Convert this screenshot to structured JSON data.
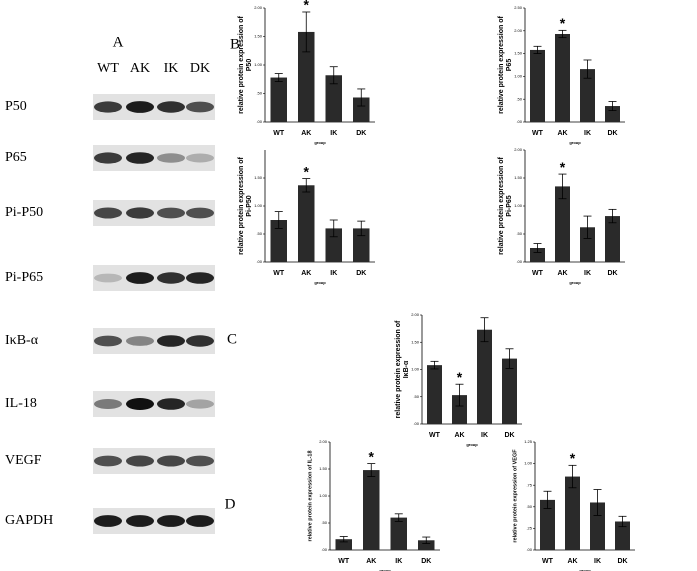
{
  "blot": {
    "panel": "A",
    "lanes": [
      "WT",
      "AK",
      "IK",
      "DK"
    ],
    "rows": [
      "P50",
      "P65",
      "Pi-P50",
      "Pi-P65",
      "IκB-α",
      "IL-18",
      "VEGF",
      "GAPDH"
    ]
  },
  "panels": [
    "B",
    "C",
    "D"
  ],
  "chart_data": [
    {
      "type": "bar",
      "ylabel": [
        "relative protein expression of",
        "P50"
      ],
      "xlabel": "group",
      "categories": [
        "WT",
        "AK",
        "IK",
        "DK"
      ],
      "values": [
        0.78,
        1.58,
        0.82,
        0.43
      ],
      "errors": [
        0.07,
        0.35,
        0.15,
        0.15
      ],
      "color": "#2a2a2a",
      "ylim": [
        0,
        2
      ],
      "yticks": [
        {
          "value": 0,
          "label": ".00"
        },
        {
          "value": 0.5,
          "label": ".50"
        },
        {
          "value": 1,
          "label": "1.00"
        },
        {
          "value": 1.5,
          "label": "1.50"
        },
        {
          "value": 2,
          "label": "2.00"
        }
      ],
      "annotation": "*",
      "annotation_category": "AK"
    },
    {
      "type": "bar",
      "ylabel": [
        "relative protein expression of",
        "P65"
      ],
      "xlabel": "group",
      "categories": [
        "WT",
        "AK",
        "IK",
        "DK"
      ],
      "values": [
        1.58,
        1.93,
        1.16,
        0.35
      ],
      "errors": [
        0.08,
        0.08,
        0.2,
        0.1
      ],
      "color": "#2a2a2a",
      "ylim": [
        0,
        2.5
      ],
      "yticks": [
        {
          "value": 0,
          "label": ".00"
        },
        {
          "value": 0.5,
          "label": ".50"
        },
        {
          "value": 1,
          "label": "1.00"
        },
        {
          "value": 1.5,
          "label": "1.50"
        },
        {
          "value": 2,
          "label": "2.00"
        },
        {
          "value": 2.5,
          "label": "2.50"
        }
      ],
      "annotation": "*",
      "annotation_category": "AK"
    },
    {
      "type": "bar",
      "ylabel": [
        "relative protein expression of",
        "Pi-P50"
      ],
      "xlabel": "group",
      "categories": [
        "WT",
        "AK",
        "IK",
        "DK"
      ],
      "values": [
        0.75,
        1.37,
        0.6,
        0.6
      ],
      "errors": [
        0.15,
        0.12,
        0.15,
        0.13
      ],
      "color": "#2a2a2a",
      "ylim": [
        0,
        2
      ],
      "yticks": [
        {
          "value": 0,
          "label": ".00"
        },
        {
          "value": 0.5,
          "label": ".50"
        },
        {
          "value": 1,
          "label": "1.00"
        },
        {
          "value": 1.5,
          "label": "1.50"
        }
      ],
      "annotation": "*",
      "annotation_category": "AK"
    },
    {
      "type": "bar",
      "ylabel": [
        "relative protein expression of",
        "Pi-P65"
      ],
      "xlabel": "group",
      "categories": [
        "WT",
        "AK",
        "IK",
        "DK"
      ],
      "values": [
        0.25,
        1.35,
        0.62,
        0.82
      ],
      "errors": [
        0.08,
        0.22,
        0.2,
        0.12
      ],
      "color": "#2a2a2a",
      "ylim": [
        0,
        2
      ],
      "yticks": [
        {
          "value": 0,
          "label": ".00"
        },
        {
          "value": 0.5,
          "label": ".50"
        },
        {
          "value": 1,
          "label": "1.00"
        },
        {
          "value": 1.5,
          "label": "1.50"
        },
        {
          "value": 2,
          "label": "2.00"
        }
      ],
      "annotation": "*",
      "annotation_category": "AK"
    },
    {
      "type": "bar",
      "ylabel": [
        "relative protein expression of",
        "IκB-α"
      ],
      "xlabel": "group",
      "categories": [
        "WT",
        "AK",
        "IK",
        "DK"
      ],
      "values": [
        1.08,
        0.53,
        1.73,
        1.2
      ],
      "errors": [
        0.07,
        0.2,
        0.22,
        0.18
      ],
      "color": "#2a2a2a",
      "ylim": [
        0,
        2
      ],
      "yticks": [
        {
          "value": 0,
          "label": ".00"
        },
        {
          "value": 0.5,
          "label": ".50"
        },
        {
          "value": 1,
          "label": "1.00"
        },
        {
          "value": 1.5,
          "label": "1.50"
        },
        {
          "value": 2,
          "label": "2.00"
        }
      ],
      "annotation": "*",
      "annotation_category": "AK"
    },
    {
      "type": "bar",
      "ylabel": [
        "relative protein expression of IL-18"
      ],
      "xlabel": "group",
      "categories": [
        "WT",
        "AK",
        "IK",
        "DK"
      ],
      "values": [
        0.2,
        1.48,
        0.6,
        0.18
      ],
      "errors": [
        0.05,
        0.12,
        0.07,
        0.06
      ],
      "color": "#2a2a2a",
      "ylim": [
        0,
        2
      ],
      "yticks": [
        {
          "value": 0,
          "label": ".00"
        },
        {
          "value": 0.5,
          "label": ".50"
        },
        {
          "value": 1,
          "label": "1.00"
        },
        {
          "value": 1.5,
          "label": "1.50"
        },
        {
          "value": 2,
          "label": "2.00"
        }
      ],
      "annotation": "*",
      "annotation_category": "AK"
    },
    {
      "type": "bar",
      "ylabel": [
        "relative protein expression of VEGF"
      ],
      "xlabel": "group",
      "categories": [
        "WT",
        "AK",
        "IK",
        "DK"
      ],
      "values": [
        0.58,
        0.85,
        0.55,
        0.33
      ],
      "errors": [
        0.1,
        0.13,
        0.15,
        0.06
      ],
      "color": "#2a2a2a",
      "ylim": [
        0,
        1.25
      ],
      "yticks": [
        {
          "value": 0,
          "label": ".00"
        },
        {
          "value": 0.25,
          "label": ".25"
        },
        {
          "value": 0.5,
          "label": ".50"
        },
        {
          "value": 0.75,
          "label": ".75"
        },
        {
          "value": 1,
          "label": "1.00"
        },
        {
          "value": 1.25,
          "label": "1.25"
        }
      ],
      "annotation": "*",
      "annotation_category": "AK"
    }
  ]
}
